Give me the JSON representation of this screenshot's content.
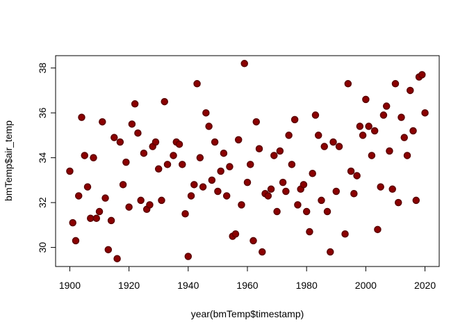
{
  "chart_data": {
    "type": "scatter",
    "x_label": "year(bmTemp$timestamp)",
    "y_label": "bmTemp$air_temp",
    "x": [
      1900,
      1901,
      1902,
      1903,
      1904,
      1905,
      1906,
      1907,
      1908,
      1909,
      1910,
      1911,
      1912,
      1913,
      1914,
      1915,
      1916,
      1917,
      1918,
      1919,
      1920,
      1921,
      1922,
      1923,
      1924,
      1925,
      1926,
      1927,
      1928,
      1929,
      1930,
      1931,
      1932,
      1933,
      1935,
      1936,
      1937,
      1938,
      1939,
      1940,
      1941,
      1942,
      1943,
      1944,
      1945,
      1946,
      1947,
      1948,
      1949,
      1950,
      1951,
      1952,
      1953,
      1954,
      1955,
      1956,
      1957,
      1958,
      1959,
      1960,
      1961,
      1962,
      1963,
      1964,
      1965,
      1966,
      1967,
      1968,
      1969,
      1970,
      1971,
      1972,
      1973,
      1974,
      1975,
      1976,
      1977,
      1978,
      1979,
      1980,
      1981,
      1982,
      1983,
      1984,
      1985,
      1986,
      1987,
      1988,
      1989,
      1990,
      1991,
      1993,
      1994,
      1995,
      1996,
      1997,
      1998,
      1999,
      2000,
      2001,
      2002,
      2003,
      2004,
      2005,
      2006,
      2007,
      2008,
      2009,
      2010,
      2011,
      2012,
      2013,
      2014,
      2015,
      2016,
      2017,
      2018,
      2019,
      2020
    ],
    "y": [
      33.4,
      31.1,
      30.3,
      32.3,
      35.8,
      34.1,
      32.7,
      31.3,
      34.0,
      31.3,
      31.6,
      35.6,
      32.2,
      29.9,
      31.2,
      34.9,
      29.5,
      34.7,
      32.8,
      33.8,
      31.8,
      35.5,
      36.4,
      35.1,
      32.1,
      34.2,
      31.7,
      31.9,
      34.5,
      34.7,
      33.5,
      32.1,
      36.5,
      33.7,
      34.1,
      34.7,
      34.6,
      33.7,
      31.5,
      29.6,
      32.3,
      32.8,
      37.3,
      34.0,
      32.7,
      36.0,
      35.4,
      33.0,
      34.7,
      32.5,
      33.4,
      34.2,
      32.3,
      33.6,
      30.5,
      30.6,
      34.8,
      31.9,
      38.2,
      32.9,
      33.7,
      30.3,
      35.6,
      34.4,
      29.8,
      32.4,
      32.3,
      32.6,
      34.1,
      31.6,
      34.3,
      32.9,
      32.5,
      35.0,
      33.7,
      35.7,
      31.9,
      32.6,
      32.8,
      31.6,
      30.7,
      33.3,
      35.9,
      35.0,
      32.1,
      34.5,
      31.6,
      29.8,
      34.7,
      32.5,
      34.5,
      30.6,
      37.3,
      33.4,
      32.4,
      33.2,
      35.4,
      35.0,
      36.6,
      35.4,
      34.1,
      35.2,
      30.8,
      32.7,
      35.9,
      36.3,
      34.3,
      32.6,
      37.3,
      32.0,
      35.8,
      34.9,
      34.1,
      37.0,
      35.2,
      32.1,
      37.6,
      37.7,
      36.0
    ],
    "color": "#8b0000",
    "xlim": [
      1895.2,
      2024.8
    ],
    "ylim": [
      29.15,
      38.55
    ],
    "xticks": [
      1900,
      1920,
      1940,
      1960,
      1980,
      2000,
      2020
    ],
    "yticks": [
      30,
      32,
      34,
      36,
      38
    ]
  }
}
